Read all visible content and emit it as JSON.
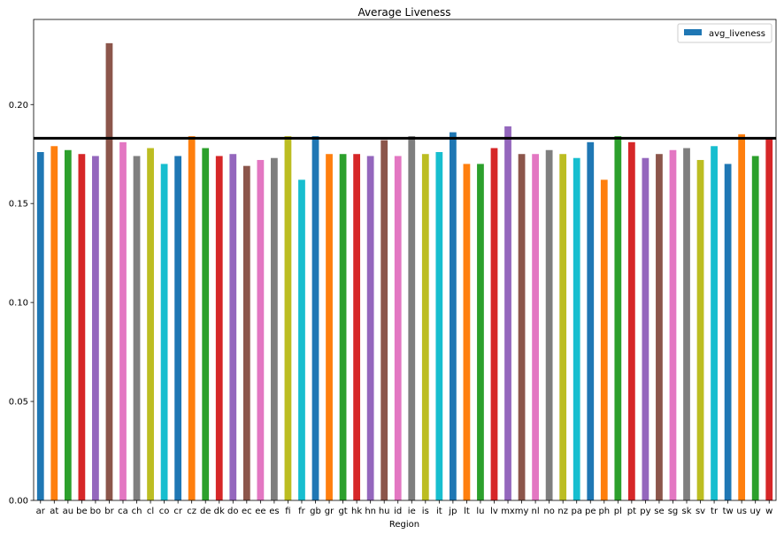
{
  "chart_data": {
    "type": "bar",
    "title": "Average Liveness",
    "xlabel": "Region",
    "ylabel": "",
    "ylim": [
      0,
      0.243
    ],
    "yticks": [
      0.0,
      0.05,
      0.1,
      0.15,
      0.2
    ],
    "ytick_labels": [
      "0.00",
      "0.05",
      "0.10",
      "0.15",
      "0.20"
    ],
    "legend": {
      "placement": "top-right",
      "entries": [
        "avg_liveness"
      ]
    },
    "grid": false,
    "reference_line": 0.183,
    "categories": [
      "ar",
      "at",
      "au",
      "be",
      "bo",
      "br",
      "ca",
      "ch",
      "cl",
      "co",
      "cr",
      "cz",
      "de",
      "dk",
      "do",
      "ec",
      "ee",
      "es",
      "fi",
      "fr",
      "gb",
      "gr",
      "gt",
      "hk",
      "hn",
      "hu",
      "id",
      "ie",
      "is",
      "it",
      "jp",
      "lt",
      "lu",
      "lv",
      "mx",
      "my",
      "nl",
      "no",
      "nz",
      "pa",
      "pe",
      "ph",
      "pl",
      "pt",
      "py",
      "se",
      "sg",
      "sk",
      "sv",
      "tr",
      "tw",
      "us",
      "uy",
      "w"
    ],
    "series": [
      {
        "name": "avg_liveness",
        "values": [
          0.176,
          0.179,
          0.177,
          0.175,
          0.174,
          0.231,
          0.181,
          0.174,
          0.178,
          0.17,
          0.174,
          0.184,
          0.178,
          0.174,
          0.175,
          0.169,
          0.172,
          0.173,
          0.184,
          0.162,
          0.184,
          0.175,
          0.175,
          0.175,
          0.174,
          0.182,
          0.174,
          0.184,
          0.175,
          0.176,
          0.186,
          0.17,
          0.17,
          0.178,
          0.189,
          0.175,
          0.175,
          0.177,
          0.175,
          0.173,
          0.181,
          0.162,
          0.184,
          0.181,
          0.173,
          0.175,
          0.177,
          0.178,
          0.172,
          0.179,
          0.17,
          0.185,
          0.174,
          0.183
        ]
      }
    ],
    "colors": [
      "#1f77b4",
      "#ff7f0e",
      "#2ca02c",
      "#d62728",
      "#9467bd",
      "#8c564b",
      "#e377c2",
      "#7f7f7f",
      "#bcbd22",
      "#17becf"
    ],
    "legend_color": "#1f77b4",
    "reference_line_color": "#000000"
  }
}
